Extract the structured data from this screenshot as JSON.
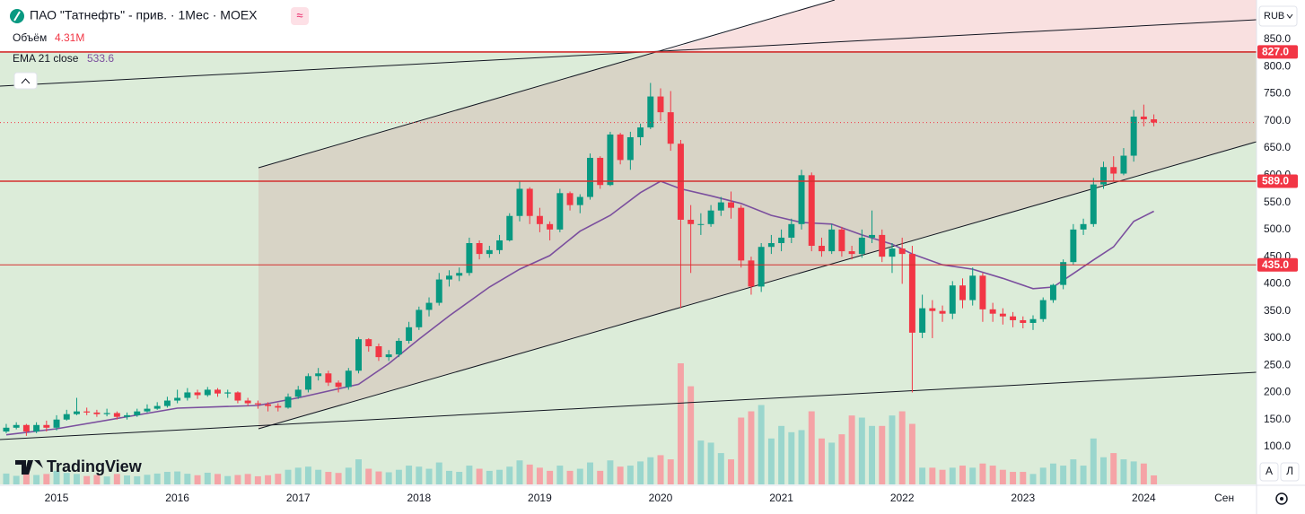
{
  "chart_data": {
    "type": "candlestick",
    "title": "ПАО \"Татнефть\" - прив. · 1Мес · MOEX",
    "currency": "RUB",
    "watermark": "TradingView",
    "buttons": [
      "A",
      "Л"
    ],
    "up_color": "#089981",
    "down_color": "#f23645",
    "xlim": [
      -0.62,
      124.2
    ],
    "xticks": [
      {
        "value": 5,
        "label": "2015"
      },
      {
        "value": 17,
        "label": "2016"
      },
      {
        "value": 29,
        "label": "2017"
      },
      {
        "value": 41,
        "label": "2018"
      },
      {
        "value": 53,
        "label": "2019"
      },
      {
        "value": 65,
        "label": "2020"
      },
      {
        "value": 77,
        "label": "2021"
      },
      {
        "value": 89,
        "label": "2022"
      },
      {
        "value": 101,
        "label": "2023"
      },
      {
        "value": 113,
        "label": "2024"
      },
      {
        "value": 121,
        "label": "Сен"
      }
    ],
    "ylim": [
      30.6,
      922.7
    ],
    "yticks": [
      {
        "value": 100,
        "label": "100.0"
      },
      {
        "value": 150,
        "label": "150.0"
      },
      {
        "value": 200,
        "label": "200.0"
      },
      {
        "value": 250,
        "label": "250.0"
      },
      {
        "value": 300,
        "label": "300.0"
      },
      {
        "value": 350,
        "label": "350.0"
      },
      {
        "value": 400,
        "label": "400.0"
      },
      {
        "value": 450,
        "label": "450.0"
      },
      {
        "value": 500,
        "label": "500.0"
      },
      {
        "value": 550,
        "label": "550.0"
      },
      {
        "value": 600,
        "label": "600.0"
      },
      {
        "value": 650,
        "label": "650.0"
      },
      {
        "value": 700,
        "label": "700.0"
      },
      {
        "value": 750,
        "label": "750.0"
      },
      {
        "value": 800,
        "label": "800.0"
      },
      {
        "value": 850,
        "label": "850.0"
      }
    ],
    "grid": false,
    "levels": [
      {
        "value": 827,
        "label": "827.0"
      },
      {
        "value": 589,
        "label": "589.0"
      },
      {
        "value": 435,
        "label": "435.0"
      }
    ],
    "open": [
      128,
      135,
      140,
      128,
      140,
      135,
      150,
      160,
      165,
      163,
      160,
      162,
      155,
      158,
      165,
      170,
      175,
      185,
      190,
      200,
      195,
      205,
      198,
      200,
      185,
      180,
      178,
      175,
      172,
      192,
      205,
      230,
      235,
      218,
      210,
      240,
      298,
      285,
      265,
      270,
      295,
      320,
      352,
      365,
      408,
      415,
      420,
      475,
      455,
      462,
      480,
      525,
      575,
      525,
      510,
      500,
      567,
      545,
      560,
      632,
      582,
      675,
      628,
      670,
      688,
      745,
      716,
      658,
      518,
      510,
      510,
      535,
      550,
      540,
      443,
      395,
      468,
      475,
      485,
      510,
      600,
      470,
      460,
      500,
      460,
      455,
      485,
      490,
      450,
      465,
      455,
      310,
      355,
      350,
      345,
      397,
      370,
      415,
      353,
      345,
      340,
      333,
      328,
      335,
      370,
      398,
      440,
      500,
      510,
      583,
      615,
      603,
      636,
      708,
      703
    ],
    "high": [
      142,
      145,
      142,
      145,
      148,
      158,
      168,
      190,
      172,
      168,
      170,
      165,
      163,
      170,
      178,
      182,
      192,
      205,
      208,
      205,
      210,
      208,
      205,
      202,
      190,
      185,
      182,
      180,
      198,
      212,
      235,
      245,
      240,
      222,
      245,
      302,
      300,
      290,
      278,
      300,
      330,
      358,
      375,
      420,
      425,
      430,
      485,
      480,
      470,
      490,
      530,
      590,
      578,
      540,
      515,
      575,
      570,
      565,
      640,
      635,
      680,
      678,
      680,
      695,
      770,
      760,
      755,
      665,
      545,
      530,
      545,
      560,
      570,
      545,
      450,
      475,
      490,
      500,
      520,
      610,
      605,
      485,
      510,
      505,
      470,
      500,
      535,
      500,
      475,
      485,
      470,
      380,
      370,
      360,
      405,
      410,
      430,
      420,
      365,
      355,
      348,
      340,
      342,
      375,
      400,
      445,
      510,
      520,
      595,
      625,
      635,
      650,
      720,
      730,
      712
    ],
    "low": [
      125,
      132,
      120,
      125,
      128,
      130,
      148,
      158,
      158,
      155,
      156,
      150,
      150,
      155,
      163,
      168,
      172,
      180,
      185,
      188,
      192,
      192,
      190,
      180,
      175,
      170,
      165,
      165,
      170,
      188,
      200,
      222,
      212,
      200,
      205,
      235,
      275,
      258,
      258,
      265,
      290,
      315,
      340,
      360,
      395,
      405,
      415,
      445,
      448,
      455,
      478,
      515,
      510,
      495,
      480,
      495,
      535,
      530,
      555,
      575,
      580,
      620,
      610,
      655,
      685,
      700,
      645,
      355,
      420,
      490,
      505,
      525,
      520,
      430,
      380,
      385,
      455,
      460,
      475,
      500,
      460,
      450,
      455,
      450,
      445,
      448,
      475,
      440,
      420,
      400,
      200,
      300,
      300,
      330,
      335,
      355,
      360,
      330,
      330,
      325,
      320,
      318,
      315,
      330,
      365,
      390,
      435,
      490,
      505,
      575,
      590,
      600,
      625,
      690,
      690
    ],
    "close": [
      135,
      140,
      128,
      140,
      135,
      150,
      160,
      165,
      163,
      160,
      162,
      155,
      158,
      165,
      170,
      175,
      185,
      190,
      200,
      195,
      205,
      198,
      200,
      185,
      180,
      178,
      175,
      172,
      192,
      205,
      230,
      235,
      218,
      210,
      240,
      298,
      285,
      265,
      270,
      295,
      320,
      352,
      365,
      408,
      415,
      420,
      475,
      455,
      462,
      480,
      525,
      575,
      525,
      510,
      500,
      567,
      545,
      560,
      632,
      582,
      675,
      628,
      670,
      688,
      745,
      716,
      658,
      518,
      510,
      510,
      535,
      550,
      540,
      443,
      395,
      468,
      475,
      485,
      510,
      600,
      470,
      460,
      500,
      460,
      455,
      485,
      490,
      450,
      465,
      455,
      310,
      355,
      350,
      345,
      397,
      370,
      415,
      353,
      345,
      340,
      333,
      328,
      335,
      370,
      398,
      440,
      500,
      510,
      583,
      615,
      603,
      636,
      708,
      703,
      697
    ],
    "volume": {
      "name": "Объём",
      "label": "4.31M",
      "up_color": "#9ad6cd",
      "down_color": "#f5a3a6",
      "values": [
        5200000.0,
        4100000.0,
        6000000.0,
        4500000.0,
        5000000.0,
        6500000.0,
        5500000.0,
        5000000.0,
        4000000.0,
        4500000.0,
        3800000.0,
        5000000.0,
        4300000.0,
        3900000.0,
        4600000.0,
        5200000.0,
        6000000.0,
        6200000.0,
        5100000.0,
        4400000.0,
        5600000.0,
        5000000.0,
        4000000.0,
        4500000.0,
        5000000.0,
        3900000.0,
        4400000.0,
        5100000.0,
        7000000.0,
        8000000.0,
        8500000.0,
        7000000.0,
        6000000.0,
        5500000.0,
        8000000.0,
        12000000.0,
        7500000.0,
        6200000.0,
        5800000.0,
        7000000.0,
        9000000.0,
        8500000.0,
        7500000.0,
        10500000.0,
        6500000.0,
        6000000.0,
        9000000.0,
        7500000.0,
        6500000.0,
        7000000.0,
        8500000.0,
        11500000.0,
        9500000.0,
        8000000.0,
        6500000.0,
        9000000.0,
        6500000.0,
        7500000.0,
        10500000.0,
        6500000.0,
        11500000.0,
        8500000.0,
        9000000.0,
        11000000.0,
        13000000.0,
        14000000.0,
        12000000.0,
        58000000.0,
        47000000.0,
        21000000.0,
        20000000.0,
        15000000.0,
        12000000.0,
        32000000.0,
        35000000.0,
        38000000.0,
        22000000.0,
        28000000.0,
        25000000.0,
        26000000.0,
        35000000.0,
        22000000.0,
        20000000.0,
        24000000.0,
        33000000.0,
        32000000.0,
        28000000.0,
        28000000.0,
        33000000.0,
        35000000.0,
        29000000.0,
        8000000.0,
        8000000.0,
        7000000.0,
        8000000.0,
        9000000.0,
        8000000.0,
        10000000.0,
        9000000.0,
        7000000.0,
        6000000.0,
        6000000.0,
        5000000.0,
        8000000.0,
        10000000.0,
        9000000.0,
        12000000.0,
        9000000.0,
        22000000.0,
        13000000.0,
        15000000.0,
        12000000.0,
        11000000.0,
        10000000.0,
        4310000.0
      ]
    },
    "ema": {
      "name": "EMA 21 close",
      "color": "#7b4f9e",
      "x": [
        0,
        5,
        17,
        25,
        29,
        35,
        38,
        41,
        44,
        48,
        51,
        54,
        57,
        60,
        63,
        65,
        67,
        70,
        73,
        76,
        79,
        82,
        85,
        88,
        90,
        93,
        96,
        99,
        102,
        104,
        106,
        108,
        110,
        112,
        114
      ],
      "values": [
        122,
        133,
        171,
        176,
        190,
        215,
        253,
        298,
        341,
        394,
        427,
        452,
        497,
        526,
        568,
        589,
        575,
        562,
        548,
        526,
        513,
        510,
        490,
        473,
        455,
        435,
        427,
        410,
        391,
        394,
        419,
        444,
        468,
        515,
        533.6
      ]
    }
  }
}
